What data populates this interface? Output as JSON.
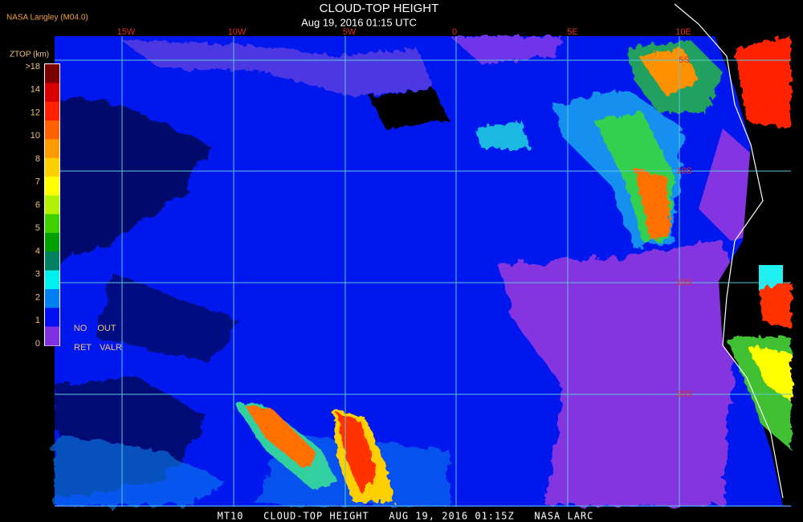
{
  "header": {
    "title": "CLOUD-TOP HEIGHT",
    "subtitle": "Aug 19, 2016 01:15 UTC",
    "source": "NASA Langley (M04.0)"
  },
  "legend": {
    "title": "ZTOP (km)",
    "labels": [
      ">18",
      "14",
      "12",
      "10",
      "8",
      "7",
      "6",
      "5",
      "4",
      "3",
      "2",
      "1",
      "0"
    ],
    "colors": [
      "#7a0000",
      "#d80000",
      "#ff2000",
      "#ff6000",
      "#ff9a00",
      "#ffd000",
      "#ffff00",
      "#b0f000",
      "#40d000",
      "#00a000",
      "#008060",
      "#00f0f0",
      "#0080f0",
      "#0010f0",
      "#8030e0"
    ],
    "notes": [
      "NO",
      "OUT",
      "RET",
      "VALR"
    ]
  },
  "map": {
    "longitude_labels": [
      "15W",
      "10W",
      "5W",
      "0",
      "5E",
      "10E"
    ],
    "latitude_labels": [
      "5S",
      "10S",
      "15S",
      "20S"
    ]
  },
  "footer": "MT10   CLOUD-TOP HEIGHT   AUG 19, 2016 01:15Z   NASA LARC"
}
